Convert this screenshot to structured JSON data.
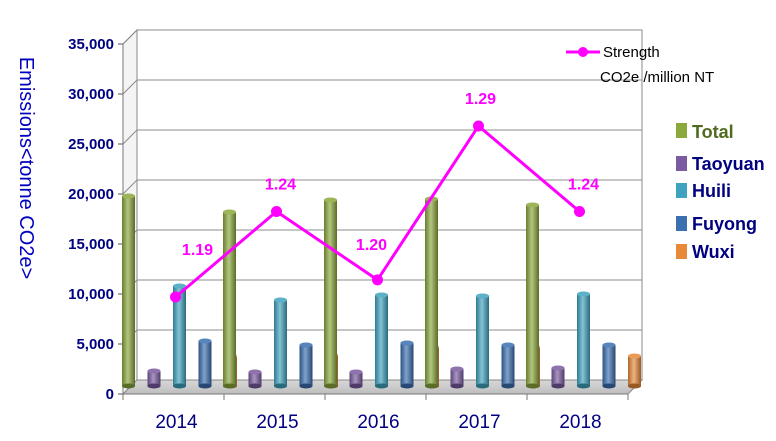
{
  "chart_data": {
    "type": "bar",
    "ylabel": "Emissions<tonne CO2e>",
    "ylim": [
      0,
      35000
    ],
    "yticks": [
      "0",
      "5,000",
      "10,000",
      "15,000",
      "20,000",
      "25,000",
      "30,000",
      "35,000"
    ],
    "categories": [
      "2014",
      "2015",
      "2016",
      "2017",
      "2018"
    ],
    "grid": true,
    "legend_position": "right",
    "series": [
      {
        "name": "Total",
        "color": "#8aa83c",
        "values": [
          19000,
          17400,
          18600,
          18700,
          18100
        ]
      },
      {
        "name": "Taoyuan",
        "color": "#7a5aa0",
        "values": [
          1500,
          1400,
          1400,
          1700,
          1800
        ]
      },
      {
        "name": "Huili",
        "color": "#3fa3c0",
        "values": [
          10000,
          8600,
          9100,
          9000,
          9200
        ]
      },
      {
        "name": "Fuyong",
        "color": "#3b6fb0",
        "values": [
          4500,
          4100,
          4300,
          4100,
          4100
        ]
      },
      {
        "name": "Wuxi",
        "color": "#e8893a",
        "values": [
          3000,
          3100,
          3900,
          3900,
          3000
        ]
      }
    ],
    "line_series": {
      "name_line1": "Strength",
      "name_line2": "CO2e /million NT",
      "color": "#ff00ff",
      "values": [
        1.19,
        1.24,
        1.2,
        1.29,
        1.24
      ],
      "labels": [
        "1.19",
        "1.24",
        "1.20",
        "1.29",
        "1.24"
      ]
    }
  }
}
